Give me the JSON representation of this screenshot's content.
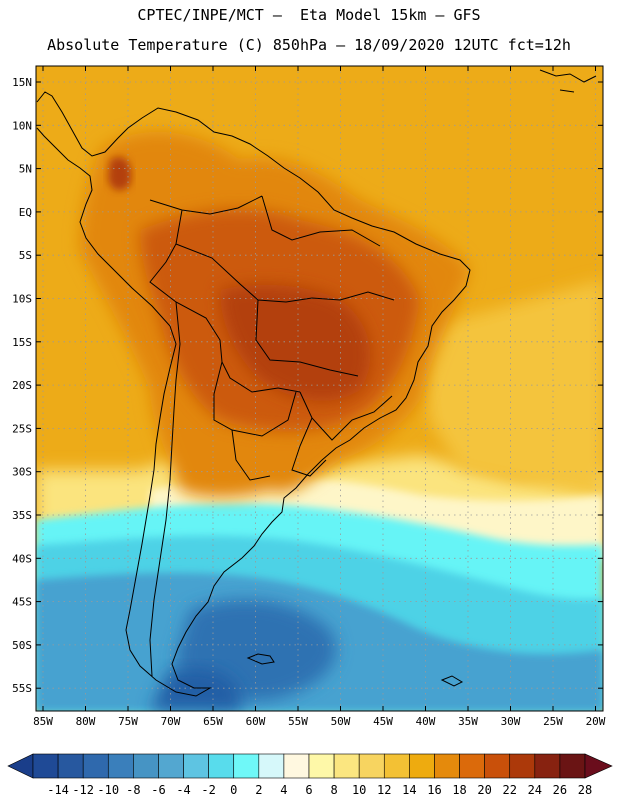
{
  "title": {
    "line1": "CPTEC/INPE/MCT –  Eta Model 15km – GFS",
    "line2": "Absolute Temperature (C) 850hPa – 18/09/2020 12UTC fct=12h"
  },
  "axes": {
    "lat_labels": [
      "15N",
      "10N",
      "5N",
      "EQ",
      "5S",
      "10S",
      "15S",
      "20S",
      "25S",
      "30S",
      "35S",
      "40S",
      "45S",
      "50S",
      "55S"
    ],
    "lon_labels": [
      "85W",
      "80W",
      "75W",
      "70W",
      "65W",
      "60W",
      "55W",
      "50W",
      "45W",
      "40W",
      "35W",
      "30W",
      "25W",
      "20W"
    ]
  },
  "colorbar": {
    "labels": [
      "-14",
      "-12",
      "-10",
      "-8",
      "-6",
      "-4",
      "-2",
      "0",
      "2",
      "4",
      "6",
      "8",
      "10",
      "12",
      "14",
      "16",
      "18",
      "20",
      "22",
      "24",
      "26",
      "28"
    ],
    "colors": [
      "#1f4a96",
      "#27589f",
      "#2f69ad",
      "#3a7fbb",
      "#4694c4",
      "#53a7d0",
      "#5ec4e2",
      "#58dcec",
      "#6ff8f8",
      "#d6f8fa",
      "#fff8e0",
      "#fef8a8",
      "#fbe680",
      "#f7d460",
      "#f3c134",
      "#eeab0f",
      "#e58a0c",
      "#db6a0b",
      "#c9500a",
      "#ac390a",
      "#872210",
      "#6a1414"
    ],
    "low_color": "#1a3e8a",
    "high_color": "#6a0d1c"
  },
  "map_colors": {
    "ocean_warm": "#edab18",
    "ocean_mid": "#f4c43c",
    "ocean_light": "#fbe47e",
    "pale": "#fef6c8",
    "cyan": "#66f4f6",
    "cyan_mid": "#4ed2e6",
    "blue": "#46a2d0",
    "blue_dark": "#2d72b2",
    "blue_deep": "#245fa6",
    "land_orange": "#e2870d",
    "land_dark": "#cc5a0b",
    "land_hot": "#b3400a",
    "coast": "#000000",
    "grid": "#9a9a9a"
  }
}
